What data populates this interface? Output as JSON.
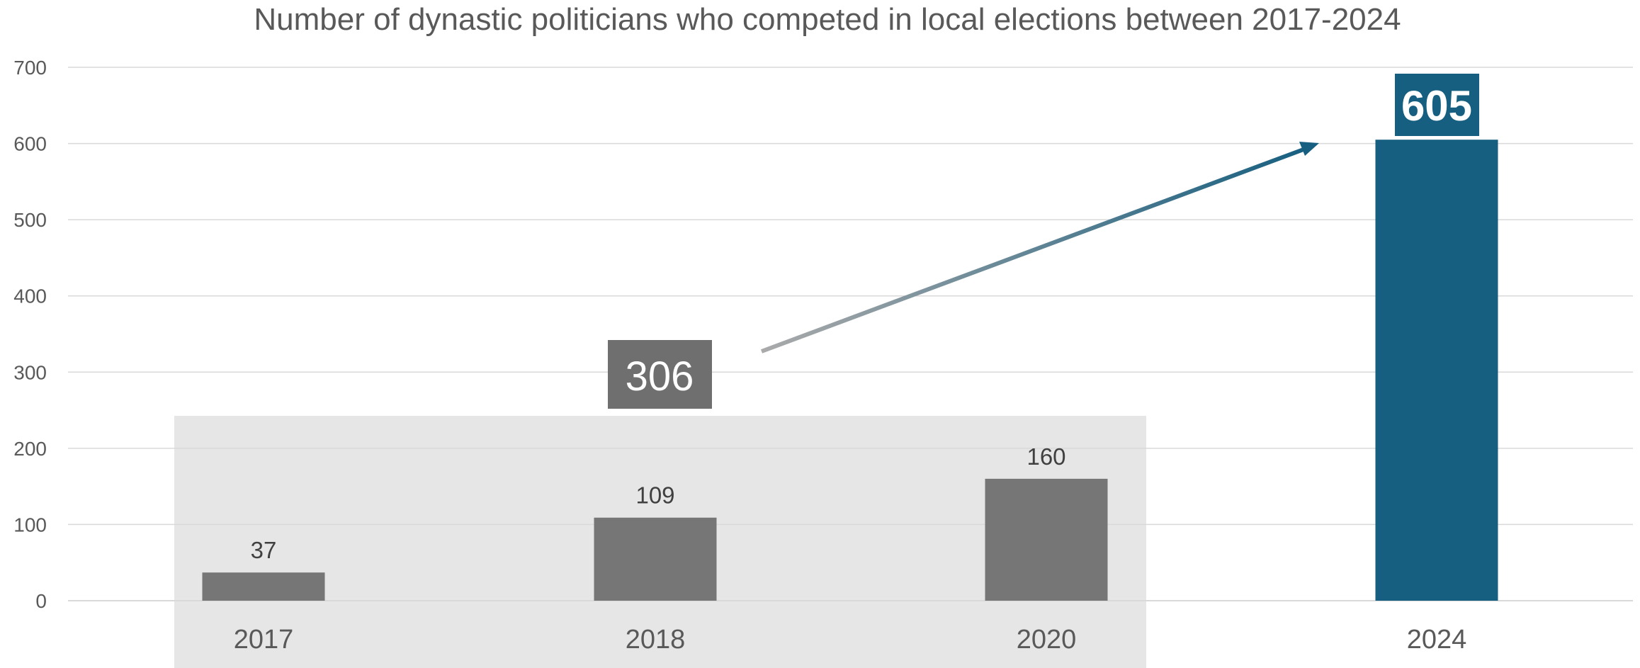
{
  "chart_data": {
    "type": "bar",
    "title": "Number of dynastic politicians who competed in local elections between 2017-2024",
    "categories": [
      "2017",
      "2018",
      "2020",
      "2024"
    ],
    "values": [
      37,
      109,
      160,
      605
    ],
    "ylim": [
      0,
      700
    ],
    "yticks": [
      "0",
      "100",
      "200",
      "300",
      "400",
      "500",
      "600",
      "700"
    ],
    "data_labels": [
      "37",
      "109",
      "160",
      ""
    ],
    "grid": true,
    "legend": "none",
    "annotations": {
      "group_total": "306",
      "highlight_value": "605"
    },
    "colors": {
      "bar_default": "#767676",
      "bar_highlight": "#165f80",
      "group_box": "#e6e6e6",
      "callout_grey": "#6f6f6f",
      "arrow_start": "#aaaaaa",
      "arrow_end": "#165f80",
      "gridline": "#d9d9d9",
      "text": "#595959"
    }
  }
}
